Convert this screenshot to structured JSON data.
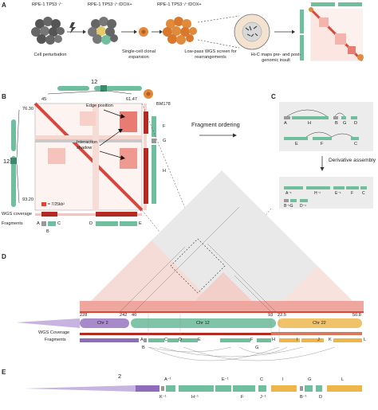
{
  "panel_a": {
    "letter": "A",
    "cell1_label": "RPE-1 TP53⁻/⁻",
    "cell2_label": "RPE-1 TP53⁻/⁻/DOX+",
    "cell3_label": "RPE-1 TP53⁻/⁻/DOX+",
    "step1": "Cell perturbation",
    "step2": "Single-cell clonal expansion",
    "step3": "Low-pass WGS screen for rearrangements",
    "step4": "Hi-C maps pre- and post- genomic insult"
  },
  "panel_b": {
    "letter": "B",
    "chrom_label_top": "12",
    "chrom_label_left": "12",
    "x_start": "45",
    "x_end": "61.47",
    "y_start": "76.30",
    "y_end": "93.20",
    "sample": "BM178",
    "annotation_edge": "Edge position",
    "annotation_shadow": "Interaction shadow",
    "legend": "= 7/25kb²",
    "wgs_label": "WGS coverage",
    "fragments_label": "Fragments",
    "fragments": [
      "A",
      "B",
      "C",
      "D",
      "E"
    ],
    "side_fragments": [
      "F",
      "G",
      "H"
    ]
  },
  "fragment_ordering_label": "Fragment ordering",
  "panel_c": {
    "letter": "C",
    "top_fragments": [
      "A",
      "H",
      "B",
      "G",
      "D",
      "E",
      "F",
      "C"
    ],
    "derivative_label": "Derivative assembly",
    "row1": [
      "A⁻¹",
      "H⁻¹",
      "E⁻¹",
      "F",
      "C"
    ],
    "row2": [
      "B⁻¹G",
      "D⁻¹"
    ]
  },
  "panel_d": {
    "letter": "D",
    "ticks": [
      "228",
      "242",
      "40",
      "93",
      "22.5",
      "50.8"
    ],
    "chromosomes": [
      {
        "name": "Chr 2",
        "color": "#a78ac9"
      },
      {
        "name": "Chr 12",
        "color": "#7fc3a8"
      },
      {
        "name": "Chr 22",
        "color": "#f0c36a"
      }
    ],
    "wgs_label": "WGS Coverage",
    "fragments_label": "Fragments",
    "fragments_top": [
      "A",
      "C",
      "D",
      "E",
      "F",
      "H",
      "I",
      "J",
      "K",
      "L"
    ],
    "fragments_bottom": [
      "B",
      "G"
    ]
  },
  "panel_e": {
    "letter": "E",
    "chr_label": "2",
    "top_labels": [
      "A⁻¹",
      "E⁻¹",
      "C",
      "I",
      "G",
      "L"
    ],
    "bottom_labels": [
      "K⁻¹",
      "H⁻¹",
      "F",
      "J⁻¹",
      "B⁻¹",
      "D"
    ]
  },
  "colors": {
    "green": "#6fbf9f",
    "purple": "#9b7ec2",
    "orange": "#eeb54a",
    "red": "#d9463c",
    "dark_red": "#b22a22",
    "grey_bg": "#ececec"
  }
}
